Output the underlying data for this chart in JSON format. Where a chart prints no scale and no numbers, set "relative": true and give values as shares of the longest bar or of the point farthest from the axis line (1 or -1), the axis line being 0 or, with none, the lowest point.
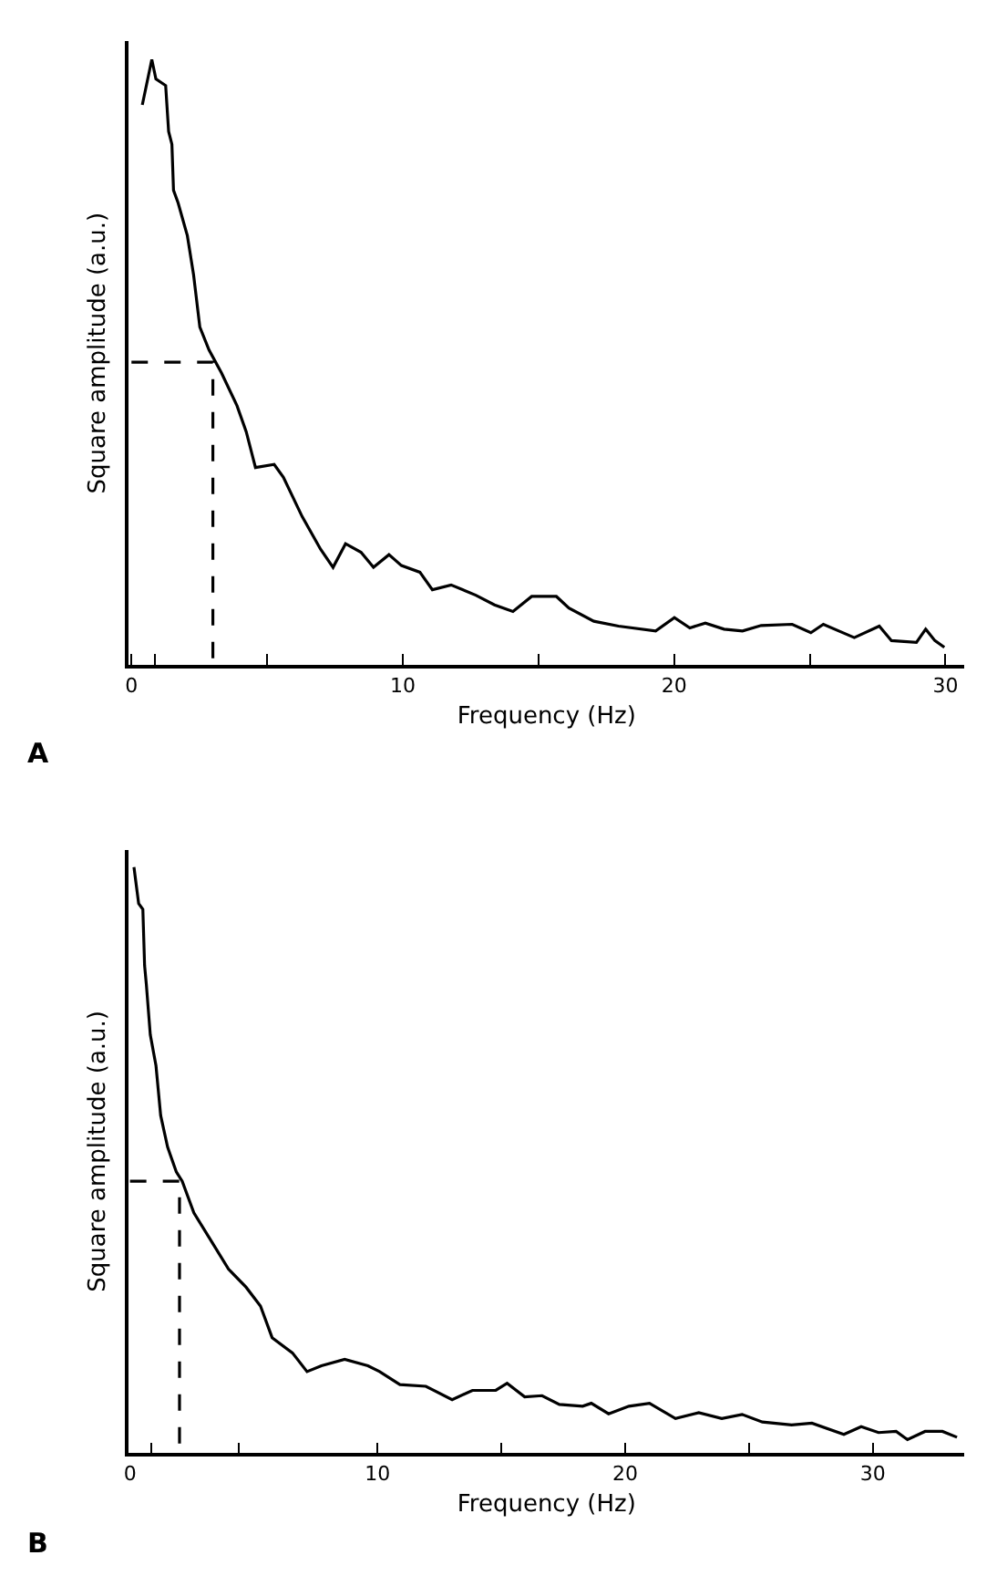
{
  "chart_data": [
    {
      "type": "line",
      "relative": true,
      "xlabel": "Frequency (Hz)",
      "ylabel": "Square amplitude (a.u.)",
      "annotations": [
        "A"
      ],
      "xlim": [
        -0.1,
        30.7
      ],
      "xticks": [
        0,
        {
          "value": 0.85,
          "label": null
        },
        {
          "value": 5,
          "label": null
        },
        10,
        {
          "value": 15,
          "label": null
        },
        20,
        {
          "value": 25,
          "label": null
        },
        30
      ],
      "series": [
        {
          "color": "#000000",
          "line_style": "solid",
          "x": [
            0.4,
            0.75,
            0.9,
            1.26,
            1.37,
            1.49,
            1.55,
            1.72,
            2.06,
            2.29,
            2.52,
            2.86,
            3.32,
            3.89,
            4.23,
            4.57,
            5.26,
            5.6,
            6.29,
            6.97,
            7.43,
            7.89,
            8.46,
            8.92,
            9.49,
            9.95,
            10.63,
            11.09,
            11.78,
            12.69,
            13.38,
            14.06,
            14.75,
            15.66,
            16.12,
            17.04,
            17.95,
            19.32,
            20.01,
            20.58,
            21.15,
            21.84,
            22.52,
            23.21,
            24.35,
            25.04,
            25.5,
            26.64,
            27.56,
            28.01,
            28.93,
            29.27,
            29.61,
            29.96
          ],
          "values": [
            0.925,
            1.0,
            0.968,
            0.957,
            0.881,
            0.86,
            0.784,
            0.763,
            0.709,
            0.644,
            0.558,
            0.52,
            0.482,
            0.428,
            0.385,
            0.326,
            0.331,
            0.31,
            0.245,
            0.191,
            0.161,
            0.2,
            0.186,
            0.161,
            0.182,
            0.164,
            0.153,
            0.124,
            0.132,
            0.115,
            0.099,
            0.088,
            0.113,
            0.113,
            0.094,
            0.072,
            0.064,
            0.056,
            0.078,
            0.061,
            0.069,
            0.059,
            0.056,
            0.065,
            0.067,
            0.053,
            0.067,
            0.045,
            0.064,
            0.04,
            0.037,
            0.059,
            0.04,
            0.029
          ]
        },
        {
          "color": "#000000",
          "line_style": "dashed",
          "x": [
            0,
            3,
            3
          ],
          "values": [
            0.5,
            0.5,
            0
          ]
        }
      ]
    },
    {
      "type": "line",
      "relative": true,
      "xlabel": "Frequency (Hz)",
      "ylabel": "Square amplitude (a.u.)",
      "annotations": [
        "B"
      ],
      "xlim": [
        -0.05,
        33.7
      ],
      "xticks": [
        0,
        {
          "value": 0.85,
          "label": null
        },
        {
          "value": 4.4,
          "label": null
        },
        10,
        {
          "value": 15,
          "label": null
        },
        20,
        {
          "value": 25,
          "label": null
        },
        30
      ],
      "series": [
        {
          "color": "#000000",
          "line_style": "solid",
          "x": [
            0.16,
            0.35,
            0.52,
            0.59,
            0.66,
            0.82,
            1.05,
            1.24,
            1.52,
            1.87,
            2.11,
            2.58,
            3.28,
            3.98,
            4.69,
            5.27,
            5.74,
            6.56,
            7.15,
            7.73,
            8.67,
            9.61,
            10.08,
            10.9,
            11.95,
            13.01,
            13.83,
            14.77,
            15.23,
            15.94,
            16.64,
            17.34,
            18.28,
            18.63,
            19.33,
            20.15,
            20.98,
            22.03,
            22.97,
            23.9,
            24.72,
            25.54,
            26.72,
            27.54,
            28.83,
            29.53,
            30.23,
            30.94,
            31.4,
            32.11,
            32.81,
            33.4
          ],
          "values": [
            1.0,
            0.938,
            0.928,
            0.832,
            0.8,
            0.714,
            0.661,
            0.576,
            0.522,
            0.48,
            0.464,
            0.41,
            0.362,
            0.314,
            0.283,
            0.251,
            0.197,
            0.171,
            0.139,
            0.149,
            0.16,
            0.149,
            0.139,
            0.117,
            0.114,
            0.091,
            0.107,
            0.107,
            0.119,
            0.096,
            0.098,
            0.083,
            0.08,
            0.085,
            0.067,
            0.08,
            0.085,
            0.059,
            0.069,
            0.059,
            0.066,
            0.053,
            0.048,
            0.051,
            0.032,
            0.045,
            0.035,
            0.037,
            0.023,
            0.037,
            0.037,
            0.027
          ]
        },
        {
          "color": "#000000",
          "line_style": "dashed",
          "x": [
            0,
            2,
            2
          ],
          "values": [
            0.464,
            0.464,
            0
          ]
        }
      ]
    }
  ]
}
